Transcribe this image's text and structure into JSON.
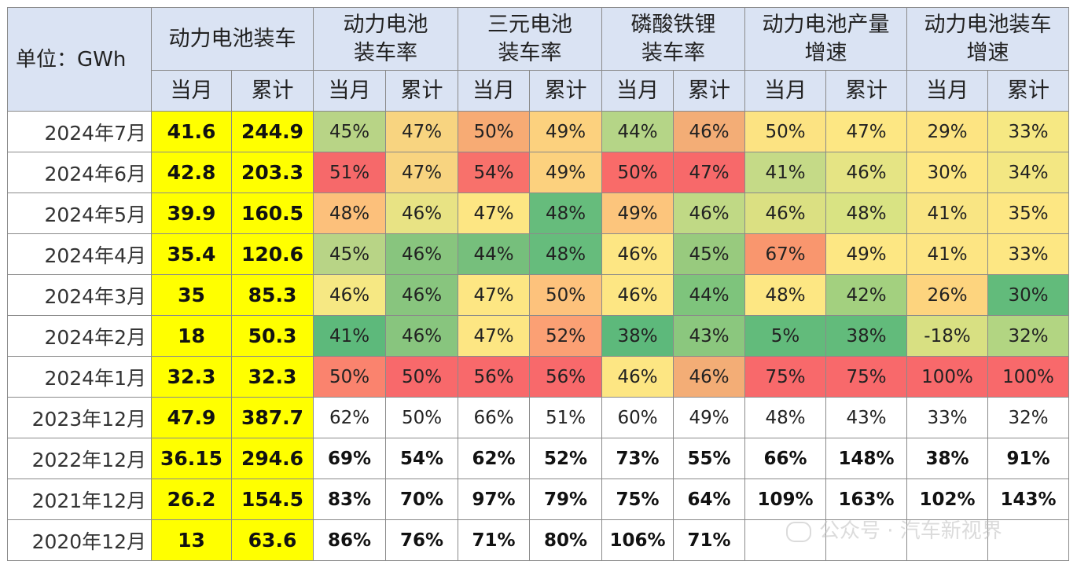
{
  "header": {
    "unit": "单位：GWh",
    "groups": [
      "动力电池装车",
      "动力电池\n装车率",
      "三元电池\n装车率",
      "磷酸铁锂\n装车率",
      "动力电池产量\n增速",
      "动力电池装车\n增速"
    ],
    "sub": [
      "当月",
      "累计"
    ]
  },
  "rows": [
    {
      "label": "2024年7月",
      "cells": [
        "41.6",
        "244.9",
        "45%",
        "47%",
        "50%",
        "49%",
        "44%",
        "46%",
        "50%",
        "47%",
        "29%",
        "33%"
      ]
    },
    {
      "label": "2024年6月",
      "cells": [
        "42.8",
        "203.3",
        "51%",
        "47%",
        "54%",
        "49%",
        "50%",
        "47%",
        "41%",
        "46%",
        "30%",
        "34%"
      ]
    },
    {
      "label": "2024年5月",
      "cells": [
        "39.9",
        "160.5",
        "48%",
        "46%",
        "47%",
        "48%",
        "49%",
        "46%",
        "46%",
        "48%",
        "41%",
        "35%"
      ]
    },
    {
      "label": "2024年4月",
      "cells": [
        "35.4",
        "120.6",
        "45%",
        "46%",
        "44%",
        "48%",
        "46%",
        "45%",
        "67%",
        "49%",
        "41%",
        "33%"
      ]
    },
    {
      "label": "2024年3月",
      "cells": [
        "35",
        "85.3",
        "46%",
        "46%",
        "47%",
        "50%",
        "46%",
        "44%",
        "48%",
        "42%",
        "26%",
        "30%"
      ]
    },
    {
      "label": "2024年2月",
      "cells": [
        "18",
        "50.3",
        "41%",
        "46%",
        "47%",
        "52%",
        "38%",
        "43%",
        "5%",
        "38%",
        "-18%",
        "32%"
      ]
    },
    {
      "label": "2024年1月",
      "cells": [
        "32.3",
        "32.3",
        "50%",
        "50%",
        "56%",
        "56%",
        "46%",
        "46%",
        "75%",
        "75%",
        "100%",
        "100%"
      ]
    },
    {
      "label": "2023年12月",
      "cells": [
        "47.9",
        "387.7",
        "62%",
        "50%",
        "66%",
        "51%",
        "60%",
        "49%",
        "48%",
        "43%",
        "33%",
        "32%"
      ]
    },
    {
      "label": "2022年12月",
      "cells": [
        "36.15",
        "294.6",
        "69%",
        "54%",
        "62%",
        "52%",
        "73%",
        "55%",
        "66%",
        "148%",
        "38%",
        "91%"
      ]
    },
    {
      "label": "2021年12月",
      "cells": [
        "26.2",
        "154.5",
        "83%",
        "70%",
        "97%",
        "79%",
        "75%",
        "64%",
        "109%",
        "163%",
        "102%",
        "143%"
      ]
    },
    {
      "label": "2020年12月",
      "cells": [
        "13",
        "63.6",
        "86%",
        "76%",
        "71%",
        "80%",
        "106%",
        "71%",
        "",
        "",
        "",
        ""
      ]
    }
  ],
  "colors": {
    "header_bg": "#dae3f3",
    "highlight_yellow": "#ffff00",
    "heat": [
      [
        "#b8d486",
        "#f8d480",
        "#f7ab74",
        "#fcd17e",
        "#b5d587",
        "#f3ad76",
        "#fce382",
        "#fde783",
        "#fde482",
        "#f6e883"
      ],
      [
        "#f6696a",
        "#f8d480",
        "#f8716b",
        "#fcd17e",
        "#f96b69",
        "#f7696a",
        "#c5da87",
        "#e5e484",
        "#fde783",
        "#f3e783"
      ],
      [
        "#fcc07b",
        "#e8e384",
        "#fde683",
        "#66bc7c",
        "#fcc57c",
        "#c0d985",
        "#dbe082",
        "#d9e383",
        "#f9e583",
        "#fde783"
      ],
      [
        "#b8d486",
        "#88c57e",
        "#76bf7c",
        "#66bc7c",
        "#fde683",
        "#98ca7e",
        "#f9966e",
        "#fde783",
        "#fde583",
        "#fde783"
      ],
      [
        "#f6e883",
        "#88c57e",
        "#fde683",
        "#fdc27c",
        "#fde683",
        "#7ec47c",
        "#fde783",
        "#a3d07f",
        "#fdd47e",
        "#62bb7b"
      ],
      [
        "#5db97b",
        "#88c57e",
        "#fde683",
        "#fba074",
        "#5db97b",
        "#8bc77e",
        "#62bb7b",
        "#62bb7b",
        "#d8e082",
        "#b2d582"
      ],
      [
        "#fa836e",
        "#f8696b",
        "#f8696b",
        "#f8696b",
        "#fde683",
        "#f3ad76",
        "#f8696b",
        "#f8696b",
        "#f8696b",
        "#f8696b"
      ]
    ]
  },
  "watermark": "公众号 · 汽车新视界"
}
